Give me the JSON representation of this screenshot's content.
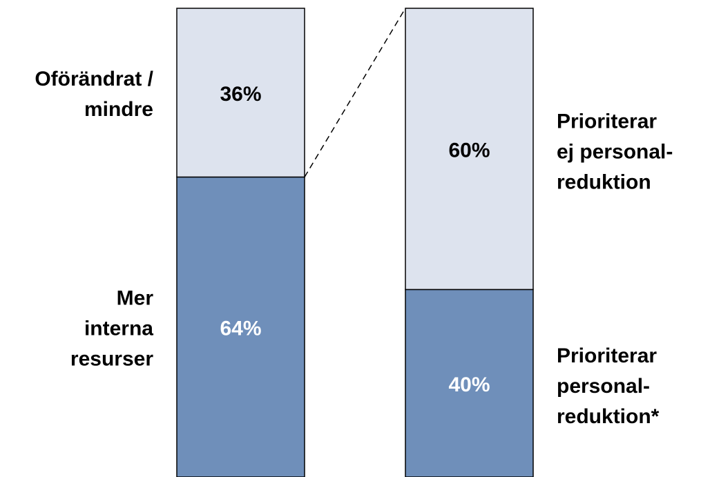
{
  "chart_data": {
    "type": "bar-of-bar",
    "ylim": [
      0,
      100
    ],
    "bars": [
      {
        "segments": [
          {
            "name": "Mer\ninterna\nresurser",
            "value": 64,
            "value_label": "64%",
            "color": "#6f8fba",
            "label_color": "#ffffff"
          },
          {
            "name": "Oförändrat /\nmindre",
            "value": 36,
            "value_label": "36%",
            "color": "#dde3ee",
            "label_color": "#000000"
          }
        ]
      },
      {
        "segments": [
          {
            "name": "Prioriterar\npersonal-\nreduktion*",
            "value": 40,
            "value_label": "40%",
            "color": "#6f8fba",
            "label_color": "#ffffff"
          },
          {
            "name": "Prioriterar\nej personal-\nreduktion",
            "value": 60,
            "value_label": "60%",
            "color": "#dde3ee",
            "label_color": "#000000"
          }
        ]
      }
    ]
  }
}
